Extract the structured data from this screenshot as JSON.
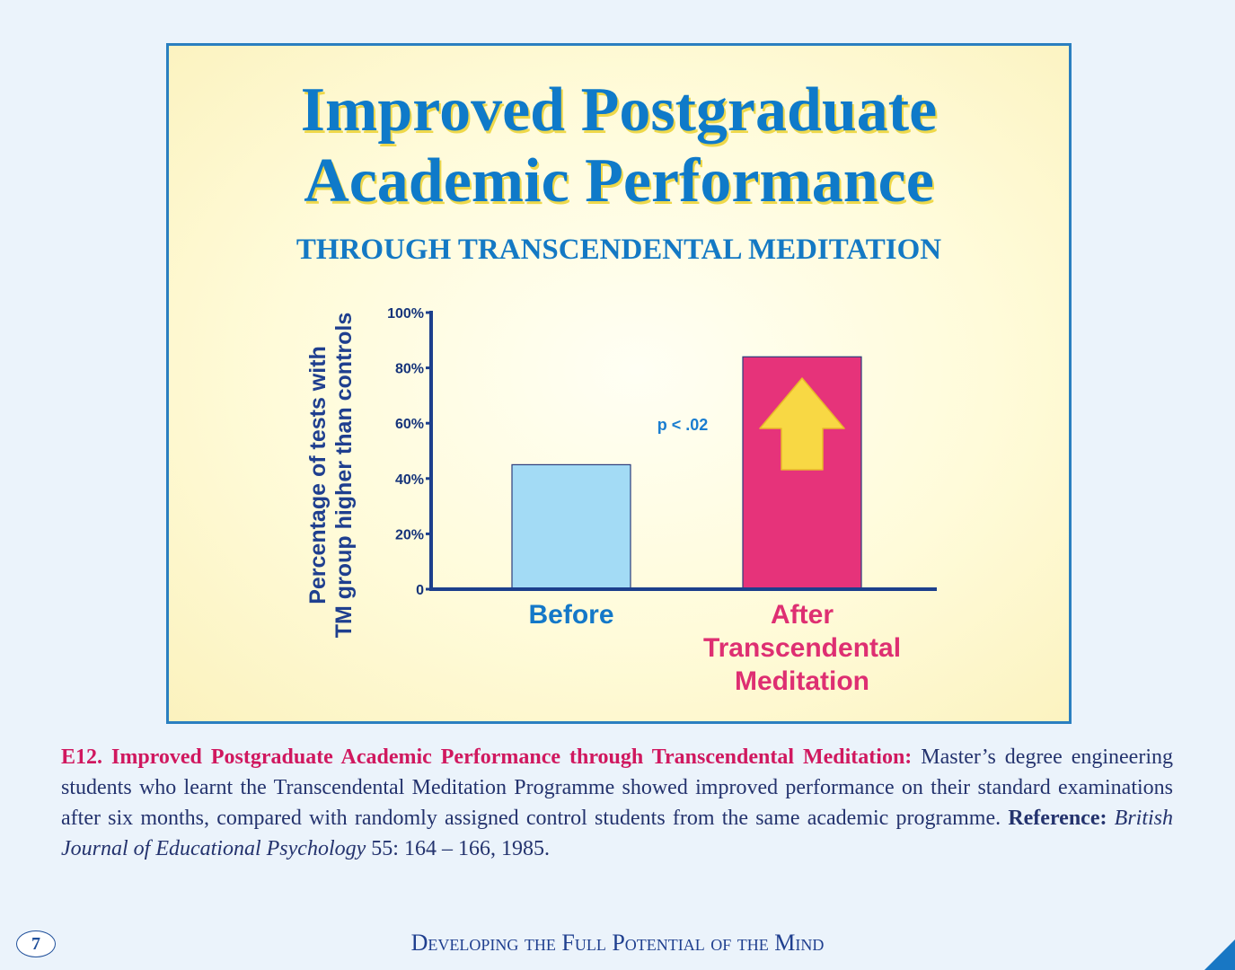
{
  "panel": {
    "title_line1": "Improved Postgraduate",
    "title_line2": "Academic Performance",
    "subtitle": "THROUGH TRANSCENDENTAL MEDITATION"
  },
  "chart_data": {
    "type": "bar",
    "categories": [
      "Before",
      "After Transcendental Meditation"
    ],
    "category_lines": [
      [
        "Before"
      ],
      [
        "After",
        "Transcendental",
        "Meditation"
      ]
    ],
    "values": [
      45,
      84
    ],
    "ylabel_lines": [
      "Percentage of tests with",
      "TM group higher than controls"
    ],
    "ylim": [
      0,
      100
    ],
    "yticks": [
      0,
      20,
      40,
      60,
      80,
      100
    ],
    "ytick_labels": [
      "0",
      "20%",
      "40%",
      "60%",
      "80%",
      "100%"
    ],
    "annotation": "p < .02",
    "grid": false,
    "colors": [
      "#a3dbf5",
      "#e6337a"
    ],
    "label_colors": [
      "#1478c8",
      "#de2f72"
    ],
    "axis_color": "#1c3f8c",
    "arrow_color": "#f8d844"
  },
  "caption": {
    "heading": "E12. Improved Postgraduate Academic Performance through Transcendental Meditation:",
    "body": " Master’s degree engineering students who learnt the Transcendental Meditation Programme showed improved performance on their standard examinations after six months, compared with randomly assigned control students from the same academic programme. ",
    "reference_label": "Reference:",
    "journal": "British Journal of Educational Psychology",
    "citation": " 55: 164 – 166, 1985."
  },
  "footer": {
    "page_number": "7",
    "title": "Developing the Full Potential of the Mind"
  }
}
